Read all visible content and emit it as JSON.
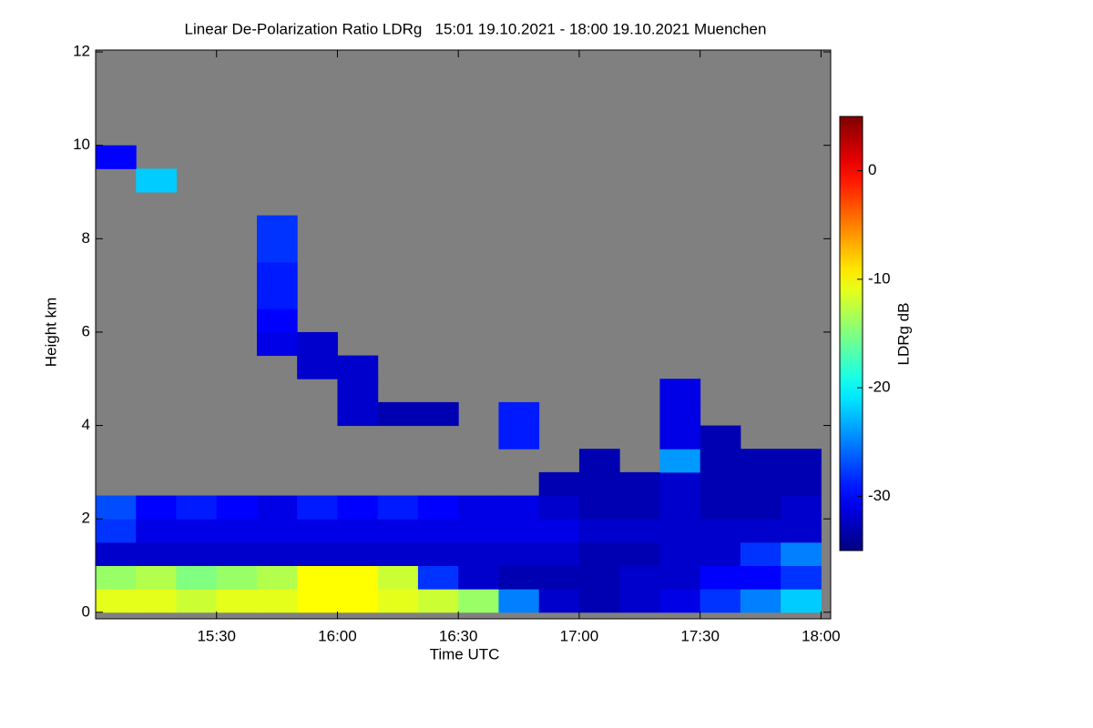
{
  "chart_data": {
    "type": "heatmap",
    "title": "Linear De-Polarization Ratio LDRg   15:01 19.10.2021 - 18:00 19.10.2021 Muenchen",
    "x_label": "Time UTC",
    "y_label": "Height km",
    "colorbar_label": "LDRg dB",
    "colormap": "jet",
    "missing_color": "#808080",
    "xlim": [
      15.0,
      18.04
    ],
    "ylim": [
      -0.14,
      12.04
    ],
    "clim": [
      -35,
      5
    ],
    "xticks": [
      {
        "value": 15.5,
        "label": "15:30"
      },
      {
        "value": 16.0,
        "label": "16:00"
      },
      {
        "value": 16.5,
        "label": "16:30"
      },
      {
        "value": 17.0,
        "label": "17:00"
      },
      {
        "value": 17.5,
        "label": "17:30"
      },
      {
        "value": 18.0,
        "label": "18:00"
      }
    ],
    "yticks": [
      0,
      2,
      4,
      6,
      8,
      10,
      12
    ],
    "cticks": [
      0,
      -10,
      -20,
      -30
    ],
    "x_bins": [
      15.0,
      15.1667,
      15.3333,
      15.5,
      15.6667,
      15.8333,
      16.0,
      16.1667,
      16.3333,
      16.5,
      16.6667,
      16.8333,
      17.0,
      17.1667,
      17.3333,
      17.5,
      17.6667,
      17.8333,
      18.0
    ],
    "y_bins": [
      0,
      0.5,
      1,
      1.5,
      2,
      2.5,
      3,
      3.5,
      4,
      4.5,
      5,
      5.5,
      6,
      6.5,
      7,
      7.5,
      8,
      8.5,
      9,
      9.5,
      10
    ],
    "z": [
      [
        -11,
        -11,
        -12,
        -11,
        -11,
        -10,
        -10,
        -11,
        -12,
        -14,
        -25,
        -32,
        -33,
        -32,
        -31,
        -28,
        -25,
        -22
      ],
      [
        -14,
        -13,
        -15,
        -14,
        -13,
        -10,
        -10,
        -12,
        -28,
        -32,
        -33,
        -33,
        -33,
        -32,
        -32,
        -30,
        -30,
        -28
      ],
      [
        -32,
        -32,
        -32,
        -32,
        -32,
        -32,
        -32,
        -32,
        -32,
        -32,
        -32,
        -32,
        -33,
        -33,
        -32,
        -32,
        -28,
        -25
      ],
      [
        -28,
        -31,
        -31,
        -31,
        -31,
        -31,
        -31,
        -31,
        -31,
        -31,
        -31,
        -31,
        -32,
        -32,
        -32,
        -32,
        -32,
        -32
      ],
      [
        -27,
        -30,
        -29,
        -30,
        -31,
        -29,
        -30,
        -29,
        -30,
        -31,
        -31,
        -32,
        -33,
        -33,
        -32,
        -33,
        -33,
        -32
      ],
      [
        null,
        null,
        null,
        null,
        null,
        null,
        null,
        null,
        null,
        null,
        null,
        -33,
        -33,
        -33,
        -32,
        -33,
        -33,
        -33
      ],
      [
        null,
        null,
        null,
        null,
        null,
        null,
        null,
        null,
        null,
        null,
        null,
        null,
        -33,
        null,
        -24,
        -33,
        -33,
        -33
      ],
      [
        null,
        null,
        null,
        null,
        null,
        null,
        null,
        null,
        null,
        null,
        -29,
        null,
        null,
        null,
        -31,
        -33,
        null,
        null
      ],
      [
        null,
        null,
        null,
        null,
        null,
        null,
        -32,
        -33,
        -33,
        null,
        -29,
        null,
        null,
        null,
        -31,
        null,
        null,
        null
      ],
      [
        null,
        null,
        null,
        null,
        null,
        null,
        -32,
        null,
        null,
        null,
        null,
        null,
        null,
        null,
        -31,
        null,
        null,
        null
      ],
      [
        null,
        null,
        null,
        null,
        null,
        -32,
        -32,
        null,
        null,
        null,
        null,
        null,
        null,
        null,
        null,
        null,
        null,
        null
      ],
      [
        null,
        null,
        null,
        null,
        -31,
        -32,
        null,
        null,
        null,
        null,
        null,
        null,
        null,
        null,
        null,
        null,
        null,
        null
      ],
      [
        null,
        null,
        null,
        null,
        -30,
        null,
        null,
        null,
        null,
        null,
        null,
        null,
        null,
        null,
        null,
        null,
        null,
        null
      ],
      [
        null,
        null,
        null,
        null,
        -29,
        null,
        null,
        null,
        null,
        null,
        null,
        null,
        null,
        null,
        null,
        null,
        null,
        null
      ],
      [
        null,
        null,
        null,
        null,
        -29,
        null,
        null,
        null,
        null,
        null,
        null,
        null,
        null,
        null,
        null,
        null,
        null,
        null
      ],
      [
        null,
        null,
        null,
        null,
        -28,
        null,
        null,
        null,
        null,
        null,
        null,
        null,
        null,
        null,
        null,
        null,
        null,
        null
      ],
      [
        null,
        null,
        null,
        null,
        -28,
        null,
        null,
        null,
        null,
        null,
        null,
        null,
        null,
        null,
        null,
        null,
        null,
        null
      ],
      [
        null,
        null,
        null,
        null,
        null,
        null,
        null,
        null,
        null,
        null,
        null,
        null,
        null,
        null,
        null,
        null,
        null,
        null
      ],
      [
        null,
        -22,
        null,
        null,
        null,
        null,
        null,
        null,
        null,
        null,
        null,
        null,
        null,
        null,
        null,
        null,
        null,
        null
      ],
      [
        -30,
        null,
        null,
        null,
        null,
        null,
        null,
        null,
        null,
        null,
        null,
        null,
        null,
        null,
        null,
        null,
        null,
        null
      ]
    ]
  }
}
